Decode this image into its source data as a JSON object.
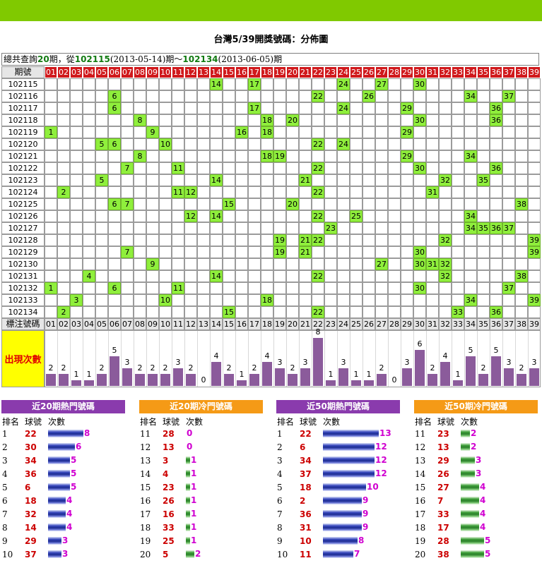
{
  "page": {
    "title": "台灣5/39開獎號碼：分佈圖",
    "summary": {
      "prefix": "總共查詢",
      "count": "20",
      "mid1": "期，從",
      "from_period": "102115",
      "from_date": "(2013-05-14)",
      "mid2": "期～",
      "to_period": "102134",
      "to_date": "(2013-06-05)",
      "suffix": "期"
    },
    "period_header": "期號",
    "marker_label": "標注號碼",
    "frequency_label": "出現次數"
  },
  "colors": {
    "top_bar": "#80c900",
    "header_red": "#d0191c",
    "hit_green": "#8fef3c",
    "freq_bar": "#8b5b9b",
    "hot_panel": "#8a3bad",
    "cold_panel": "#f59a16"
  },
  "chart_data": {
    "type": "table",
    "numbers": [
      "01",
      "02",
      "03",
      "04",
      "05",
      "06",
      "07",
      "08",
      "09",
      "10",
      "11",
      "12",
      "13",
      "14",
      "15",
      "16",
      "17",
      "18",
      "19",
      "20",
      "21",
      "22",
      "23",
      "24",
      "25",
      "26",
      "27",
      "28",
      "29",
      "30",
      "31",
      "32",
      "33",
      "34",
      "35",
      "36",
      "37",
      "38",
      "39"
    ],
    "draws": [
      {
        "period": "102115",
        "numbers": [
          14,
          17,
          24,
          27,
          30
        ]
      },
      {
        "period": "102116",
        "numbers": [
          6,
          22,
          26,
          34,
          37
        ]
      },
      {
        "period": "102117",
        "numbers": [
          6,
          17,
          24,
          29,
          36
        ]
      },
      {
        "period": "102118",
        "numbers": [
          8,
          18,
          20,
          30,
          36
        ]
      },
      {
        "period": "102119",
        "numbers": [
          1,
          9,
          16,
          18,
          29
        ]
      },
      {
        "period": "102120",
        "numbers": [
          5,
          6,
          10,
          22,
          24
        ]
      },
      {
        "period": "102121",
        "numbers": [
          8,
          18,
          19,
          29,
          34
        ]
      },
      {
        "period": "102122",
        "numbers": [
          7,
          11,
          22,
          30,
          36
        ]
      },
      {
        "period": "102123",
        "numbers": [
          5,
          14,
          21,
          32,
          35
        ]
      },
      {
        "period": "102124",
        "numbers": [
          2,
          11,
          12,
          22,
          31
        ]
      },
      {
        "period": "102125",
        "numbers": [
          6,
          7,
          15,
          20,
          38
        ]
      },
      {
        "period": "102126",
        "numbers": [
          12,
          14,
          22,
          25,
          34
        ]
      },
      {
        "period": "102127",
        "numbers": [
          23,
          34,
          35,
          36,
          37
        ]
      },
      {
        "period": "102128",
        "numbers": [
          19,
          21,
          22,
          32,
          39
        ]
      },
      {
        "period": "102129",
        "numbers": [
          7,
          19,
          21,
          30,
          39
        ]
      },
      {
        "period": "102130",
        "numbers": [
          9,
          27,
          30,
          31,
          32
        ]
      },
      {
        "period": "102131",
        "numbers": [
          4,
          14,
          22,
          32,
          38
        ]
      },
      {
        "period": "102132",
        "numbers": [
          1,
          6,
          11,
          30,
          37
        ]
      },
      {
        "period": "102133",
        "numbers": [
          3,
          10,
          18,
          34,
          39
        ]
      },
      {
        "period": "102134",
        "numbers": [
          2,
          15,
          22,
          33,
          36
        ]
      }
    ],
    "frequency": [
      2,
      2,
      1,
      1,
      2,
      5,
      3,
      2,
      2,
      2,
      3,
      2,
      0,
      4,
      2,
      1,
      2,
      4,
      3,
      2,
      3,
      8,
      1,
      3,
      1,
      1,
      2,
      0,
      3,
      6,
      2,
      4,
      1,
      5,
      2,
      5,
      3,
      2,
      3
    ]
  },
  "panels": [
    {
      "title": "近20期熱門號碼",
      "kind": "hot",
      "headers": {
        "rank": "排名",
        "ball": "球號",
        "count": "次數"
      },
      "rows": [
        {
          "rank": "1",
          "ball": "22",
          "count": "8"
        },
        {
          "rank": "2",
          "ball": "30",
          "count": "6"
        },
        {
          "rank": "3",
          "ball": "34",
          "count": "5"
        },
        {
          "rank": "4",
          "ball": "36",
          "count": "5"
        },
        {
          "rank": "5",
          "ball": "6",
          "count": "5"
        },
        {
          "rank": "6",
          "ball": "18",
          "count": "4"
        },
        {
          "rank": "7",
          "ball": "32",
          "count": "4"
        },
        {
          "rank": "8",
          "ball": "14",
          "count": "4"
        },
        {
          "rank": "9",
          "ball": "29",
          "count": "3"
        },
        {
          "rank": "10",
          "ball": "37",
          "count": "3"
        }
      ]
    },
    {
      "title": "近20期冷門號碼",
      "kind": "cold",
      "headers": {
        "rank": "排名",
        "ball": "球號",
        "count": "次數"
      },
      "rows": [
        {
          "rank": "11",
          "ball": "28",
          "count": "0"
        },
        {
          "rank": "12",
          "ball": "13",
          "count": "0"
        },
        {
          "rank": "13",
          "ball": "3",
          "count": "1"
        },
        {
          "rank": "14",
          "ball": "4",
          "count": "1"
        },
        {
          "rank": "15",
          "ball": "23",
          "count": "1"
        },
        {
          "rank": "16",
          "ball": "26",
          "count": "1"
        },
        {
          "rank": "17",
          "ball": "16",
          "count": "1"
        },
        {
          "rank": "18",
          "ball": "33",
          "count": "1"
        },
        {
          "rank": "19",
          "ball": "25",
          "count": "1"
        },
        {
          "rank": "20",
          "ball": "5",
          "count": "2"
        }
      ]
    },
    {
      "title": "近50期熱門號碼",
      "kind": "hot",
      "headers": {
        "rank": "排名",
        "ball": "球號",
        "count": "次數"
      },
      "rows": [
        {
          "rank": "1",
          "ball": "22",
          "count": "13"
        },
        {
          "rank": "2",
          "ball": "6",
          "count": "12"
        },
        {
          "rank": "3",
          "ball": "34",
          "count": "12"
        },
        {
          "rank": "4",
          "ball": "37",
          "count": "12"
        },
        {
          "rank": "5",
          "ball": "18",
          "count": "10"
        },
        {
          "rank": "6",
          "ball": "2",
          "count": "9"
        },
        {
          "rank": "7",
          "ball": "36",
          "count": "9"
        },
        {
          "rank": "8",
          "ball": "31",
          "count": "9"
        },
        {
          "rank": "9",
          "ball": "10",
          "count": "8"
        },
        {
          "rank": "10",
          "ball": "11",
          "count": "7"
        }
      ]
    },
    {
      "title": "近50期冷門號碼",
      "kind": "cold",
      "headers": {
        "rank": "排名",
        "ball": "球號",
        "count": "次數"
      },
      "rows": [
        {
          "rank": "11",
          "ball": "23",
          "count": "2"
        },
        {
          "rank": "12",
          "ball": "13",
          "count": "2"
        },
        {
          "rank": "13",
          "ball": "29",
          "count": "3"
        },
        {
          "rank": "14",
          "ball": "26",
          "count": "3"
        },
        {
          "rank": "15",
          "ball": "27",
          "count": "4"
        },
        {
          "rank": "16",
          "ball": "7",
          "count": "4"
        },
        {
          "rank": "17",
          "ball": "33",
          "count": "4"
        },
        {
          "rank": "18",
          "ball": "17",
          "count": "4"
        },
        {
          "rank": "19",
          "ball": "28",
          "count": "5"
        },
        {
          "rank": "20",
          "ball": "38",
          "count": "5"
        }
      ]
    }
  ]
}
